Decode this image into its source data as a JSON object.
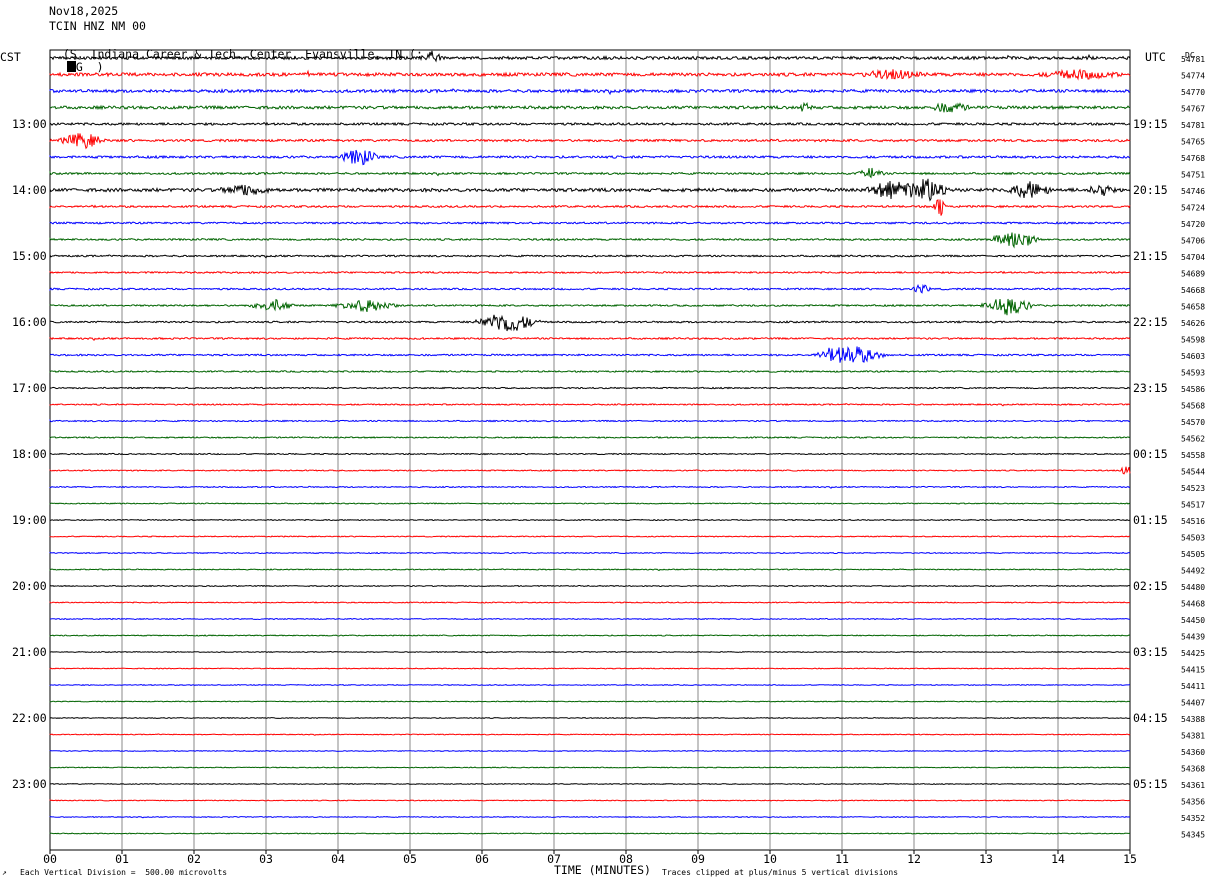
{
  "header": {
    "date": "Nov18,2025",
    "station": "TCIN HNZ NM 00",
    "location": "(S. Indiana Career & Tech. Center, Evansville, IN (;",
    "location_tail": "G  )"
  },
  "left_label": "CST",
  "right_label": "UTC",
  "dc_label": "DC",
  "footer": {
    "scale_note": "Each Vertical Division =  500.00 microvolts",
    "x_title": "TIME (MINUTES)",
    "clip_note": "Traces clipped at plus/minus 5 vertical divisions"
  },
  "chart_data": {
    "type": "line",
    "title": "Nov18,2025 TCIN HNZ NM 00",
    "xlabel": "TIME (MINUTES)",
    "x_ticks": [
      "00",
      "01",
      "02",
      "03",
      "04",
      "05",
      "06",
      "07",
      "08",
      "09",
      "10",
      "11",
      "12",
      "13",
      "14",
      "15"
    ],
    "xlim": [
      0,
      15
    ],
    "trace_count": 48,
    "trace_colors": [
      "#000000",
      "#ff0000",
      "#0000ff",
      "#006400"
    ],
    "left_time_labels": [
      {
        "trace": 4,
        "label": "13:00"
      },
      {
        "trace": 8,
        "label": "14:00"
      },
      {
        "trace": 12,
        "label": "15:00"
      },
      {
        "trace": 16,
        "label": "16:00"
      },
      {
        "trace": 20,
        "label": "17:00"
      },
      {
        "trace": 24,
        "label": "18:00"
      },
      {
        "trace": 28,
        "label": "19:00"
      },
      {
        "trace": 32,
        "label": "20:00"
      },
      {
        "trace": 36,
        "label": "21:00"
      },
      {
        "trace": 40,
        "label": "22:00"
      },
      {
        "trace": 44,
        "label": "23:00"
      }
    ],
    "right_time_labels": [
      {
        "trace": 4,
        "label": "19:15"
      },
      {
        "trace": 8,
        "label": "20:15"
      },
      {
        "trace": 12,
        "label": "21:15"
      },
      {
        "trace": 16,
        "label": "22:15"
      },
      {
        "trace": 20,
        "label": "23:15"
      },
      {
        "trace": 24,
        "label": "00:15"
      },
      {
        "trace": 28,
        "label": "01:15"
      },
      {
        "trace": 32,
        "label": "02:15"
      },
      {
        "trace": 36,
        "label": "03:15"
      },
      {
        "trace": 40,
        "label": "04:15"
      },
      {
        "trace": 44,
        "label": "05:15"
      }
    ],
    "dc_values": [
      "54781",
      "54774",
      "54770",
      "54767",
      "54781",
      "54765",
      "54768",
      "54751",
      "54746",
      "54724",
      "54720",
      "54706",
      "54704",
      "54689",
      "54668",
      "54658",
      "54626",
      "54598",
      "54603",
      "54593",
      "54586",
      "54568",
      "54570",
      "54562",
      "54558",
      "54544",
      "54523",
      "54517",
      "54516",
      "54503",
      "54505",
      "54492",
      "54480",
      "54468",
      "54450",
      "54439",
      "54425",
      "54415",
      "54411",
      "54407",
      "54388",
      "54381",
      "54360",
      "54368",
      "54361",
      "54356",
      "54352",
      "54345"
    ],
    "activity": [
      0.9,
      1.0,
      0.9,
      0.9,
      0.7,
      0.7,
      0.7,
      0.6,
      1.0,
      0.6,
      0.55,
      0.55,
      0.5,
      0.5,
      0.5,
      0.5,
      0.5,
      0.5,
      0.5,
      0.45,
      0.4,
      0.4,
      0.4,
      0.4,
      0.35,
      0.35,
      0.35,
      0.3,
      0.3,
      0.3,
      0.3,
      0.3,
      0.3,
      0.3,
      0.3,
      0.3,
      0.25,
      0.25,
      0.25,
      0.25,
      0.25,
      0.25,
      0.25,
      0.25,
      0.25,
      0.25,
      0.25,
      0.25
    ],
    "events": [
      {
        "trace": 0,
        "minute": 5.3,
        "amp": 7,
        "dur": 0.15
      },
      {
        "trace": 1,
        "minute": 11.7,
        "amp": 4,
        "dur": 0.5
      },
      {
        "trace": 1,
        "minute": 14.3,
        "amp": 4,
        "dur": 0.6
      },
      {
        "trace": 3,
        "minute": 10.5,
        "amp": 6,
        "dur": 0.1
      },
      {
        "trace": 3,
        "minute": 12.5,
        "amp": 5,
        "dur": 0.3
      },
      {
        "trace": 5,
        "minute": 0.45,
        "amp": 8,
        "dur": 0.35
      },
      {
        "trace": 6,
        "minute": 4.3,
        "amp": 9,
        "dur": 0.3
      },
      {
        "trace": 7,
        "minute": 11.4,
        "amp": 5,
        "dur": 0.2
      },
      {
        "trace": 8,
        "minute": 2.7,
        "amp": 5,
        "dur": 0.4
      },
      {
        "trace": 8,
        "minute": 11.7,
        "amp": 9,
        "dur": 0.4
      },
      {
        "trace": 8,
        "minute": 12.2,
        "amp": 12,
        "dur": 0.35
      },
      {
        "trace": 8,
        "minute": 13.6,
        "amp": 8,
        "dur": 0.35
      },
      {
        "trace": 8,
        "minute": 14.6,
        "amp": 7,
        "dur": 0.2
      },
      {
        "trace": 9,
        "minute": 12.35,
        "amp": 12,
        "dur": 0.1
      },
      {
        "trace": 11,
        "minute": 13.4,
        "amp": 11,
        "dur": 0.35
      },
      {
        "trace": 14,
        "minute": 12.1,
        "amp": 5,
        "dur": 0.15
      },
      {
        "trace": 15,
        "minute": 3.1,
        "amp": 6,
        "dur": 0.35
      },
      {
        "trace": 15,
        "minute": 4.4,
        "amp": 6,
        "dur": 0.5
      },
      {
        "trace": 15,
        "minute": 13.3,
        "amp": 10,
        "dur": 0.4
      },
      {
        "trace": 16,
        "minute": 6.35,
        "amp": 11,
        "dur": 0.5
      },
      {
        "trace": 18,
        "minute": 11.1,
        "amp": 10,
        "dur": 0.55
      },
      {
        "trace": 25,
        "minute": 14.95,
        "amp": 5,
        "dur": 0.1
      }
    ]
  }
}
